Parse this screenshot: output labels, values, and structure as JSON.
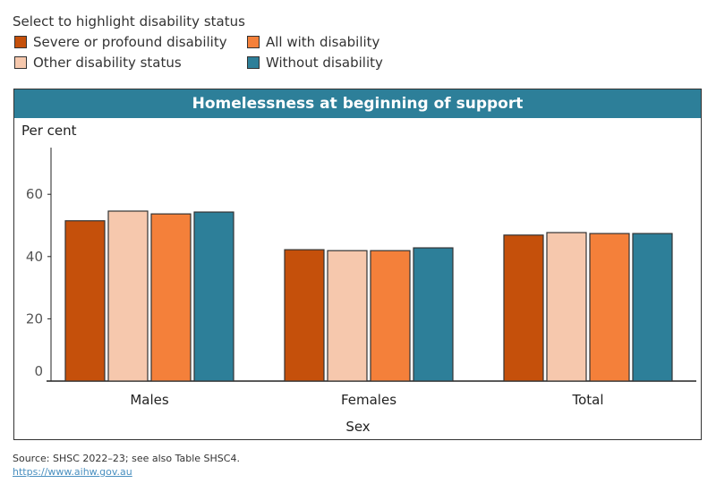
{
  "legend": {
    "title": "Select to highlight disability status",
    "items": [
      {
        "label": "Severe or profound disability",
        "color": "#c5500b"
      },
      {
        "label": "All with disability",
        "color": "#f4803a"
      },
      {
        "label": "Other disability status",
        "color": "#f6c8ad"
      },
      {
        "label": "Without disability",
        "color": "#2d7f99"
      }
    ]
  },
  "chart_data": {
    "type": "bar",
    "title": "Homelessness at beginning of support",
    "ylabel": "Per cent",
    "xlabel": "Sex",
    "ylim": [
      0,
      75
    ],
    "yticks": [
      0,
      20,
      40,
      60
    ],
    "categories": [
      "Males",
      "Females",
      "Total"
    ],
    "series": [
      {
        "name": "Severe or profound disability",
        "color": "#c5500b",
        "values": [
          51.5,
          42.2,
          46.9
        ]
      },
      {
        "name": "Other disability status",
        "color": "#f6c8ad",
        "values": [
          54.6,
          41.9,
          47.7
        ]
      },
      {
        "name": "All with disability",
        "color": "#f4803a",
        "values": [
          53.7,
          41.9,
          47.4
        ]
      },
      {
        "name": "Without disability",
        "color": "#2d7f99",
        "values": [
          54.3,
          42.8,
          47.4
        ]
      }
    ],
    "grid": false,
    "legend_position": "top-left"
  },
  "footer": {
    "source": "Source: SHSC 2022–23; see also Table SHSC4.",
    "link": "https://www.aihw.gov.au"
  }
}
